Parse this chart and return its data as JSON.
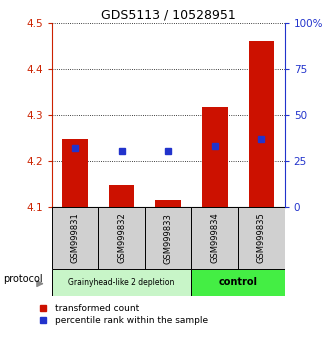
{
  "title": "GDS5113 / 10528951",
  "samples": [
    "GSM999831",
    "GSM999832",
    "GSM999833",
    "GSM999834",
    "GSM999835"
  ],
  "red_bar_bottom": [
    4.1,
    4.1,
    4.1,
    4.1,
    4.1
  ],
  "red_bar_top": [
    4.248,
    4.147,
    4.115,
    4.318,
    4.46
  ],
  "blue_dot_y": [
    4.228,
    4.222,
    4.222,
    4.232,
    4.247
  ],
  "ylim_left": [
    4.1,
    4.5
  ],
  "ylim_right": [
    0,
    100
  ],
  "yticks_left": [
    4.1,
    4.2,
    4.3,
    4.4,
    4.5
  ],
  "yticks_right": [
    0,
    25,
    50,
    75,
    100
  ],
  "ytick_labels_right": [
    "0",
    "25",
    "50",
    "75",
    "100%"
  ],
  "group1_label": "Grainyhead-like 2 depletion",
  "group2_label": "control",
  "group1_color": "#c8f5c8",
  "group2_color": "#44ee44",
  "protocol_label": "protocol",
  "legend_red_label": "transformed count",
  "legend_blue_label": "percentile rank within the sample",
  "red_color": "#cc1100",
  "blue_color": "#2233cc",
  "bar_width": 0.55,
  "left_axis_color": "#cc2200",
  "right_axis_color": "#2233cc",
  "title_fontsize": 9,
  "tick_fontsize": 7.5,
  "label_fontsize": 6.5,
  "legend_fontsize": 6.5
}
